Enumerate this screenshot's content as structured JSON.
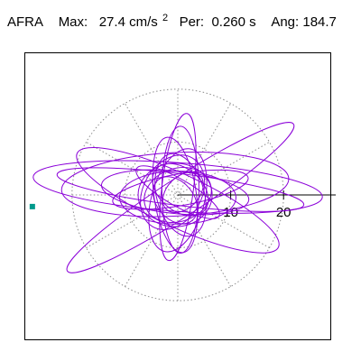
{
  "header": {
    "station": "AFRA",
    "max_label": "Max:",
    "max_value": "27.4",
    "max_unit": "cm/s",
    "max_exp": "2",
    "period_label": "Per:",
    "period_value": "0.260 s",
    "angle_label": "Ang:",
    "angle_value": "184.7"
  },
  "chart_data": {
    "type": "scatter",
    "subtype": "polar particle-motion hodogram",
    "grid": "dotted polar rings with radial spokes every 30 degrees",
    "rings": [
      10,
      20
    ],
    "tick_labels": [
      "10",
      "20"
    ],
    "range": [
      -28,
      28
    ],
    "colors": {
      "trace": "#8b00d9",
      "start_marker": "#009a8c",
      "grid": "#8c8c8c",
      "axis": "#000000"
    },
    "ellipses": [
      {
        "cx": 0,
        "cy": 1.5,
        "a": 27.4,
        "b": 4.6,
        "deg": -4
      },
      {
        "cx": 0.5,
        "cy": -0.5,
        "a": 25.5,
        "b": 3.6,
        "deg": 33
      },
      {
        "cx": 0.5,
        "cy": 1.0,
        "a": 23.5,
        "b": 3.0,
        "deg": -7
      },
      {
        "cx": -0.5,
        "cy": 2.0,
        "a": 21.5,
        "b": 6.0,
        "deg": 3
      },
      {
        "cx": 0,
        "cy": -1.0,
        "a": 21.0,
        "b": 5.0,
        "deg": -25
      },
      {
        "cx": -0.5,
        "cy": 0.5,
        "a": 14.0,
        "b": 4.0,
        "deg": -6
      },
      {
        "cx": 0.5,
        "cy": 1.0,
        "a": 13.0,
        "b": 3.0,
        "deg": 10
      },
      {
        "cx": 0,
        "cy": -0.5,
        "a": 11.0,
        "b": 5.0,
        "deg": 0
      },
      {
        "cx": 0,
        "cy": 1.5,
        "a": 14.0,
        "b": 3.0,
        "deg": 83
      },
      {
        "cx": 0.5,
        "cy": 1.0,
        "a": 12.0,
        "b": 3.5,
        "deg": 90
      },
      {
        "cx": -0.5,
        "cy": 0,
        "a": 11.0,
        "b": 4.0,
        "deg": 98
      },
      {
        "cx": 0,
        "cy": -1.0,
        "a": 10.0,
        "b": 5.0,
        "deg": 75
      },
      {
        "cx": 0.5,
        "cy": 0,
        "a": 8.0,
        "b": 4.5,
        "deg": 105
      },
      {
        "cx": -1.0,
        "cy": 0.5,
        "a": 7.5,
        "b": 5.5,
        "deg": 60
      },
      {
        "cx": 0,
        "cy": 0,
        "a": 6.5,
        "b": 5.0,
        "deg": 20
      },
      {
        "cx": 0.5,
        "cy": 1.0,
        "a": 6.0,
        "b": 4.0,
        "deg": -40
      },
      {
        "cx": -0.5,
        "cy": -1.0,
        "a": 5.0,
        "b": 3.5,
        "deg": 130
      },
      {
        "cx": 1.0,
        "cy": 0.5,
        "a": 4.5,
        "b": 3.0,
        "deg": 45
      },
      {
        "cx": 0,
        "cy": 0.5,
        "a": 9.0,
        "b": 2.5,
        "deg": 150
      },
      {
        "cx": -0.5,
        "cy": 0,
        "a": 7.0,
        "b": 6.0,
        "deg": 0
      }
    ],
    "start_point": [
      -27.5,
      -2.2
    ]
  }
}
